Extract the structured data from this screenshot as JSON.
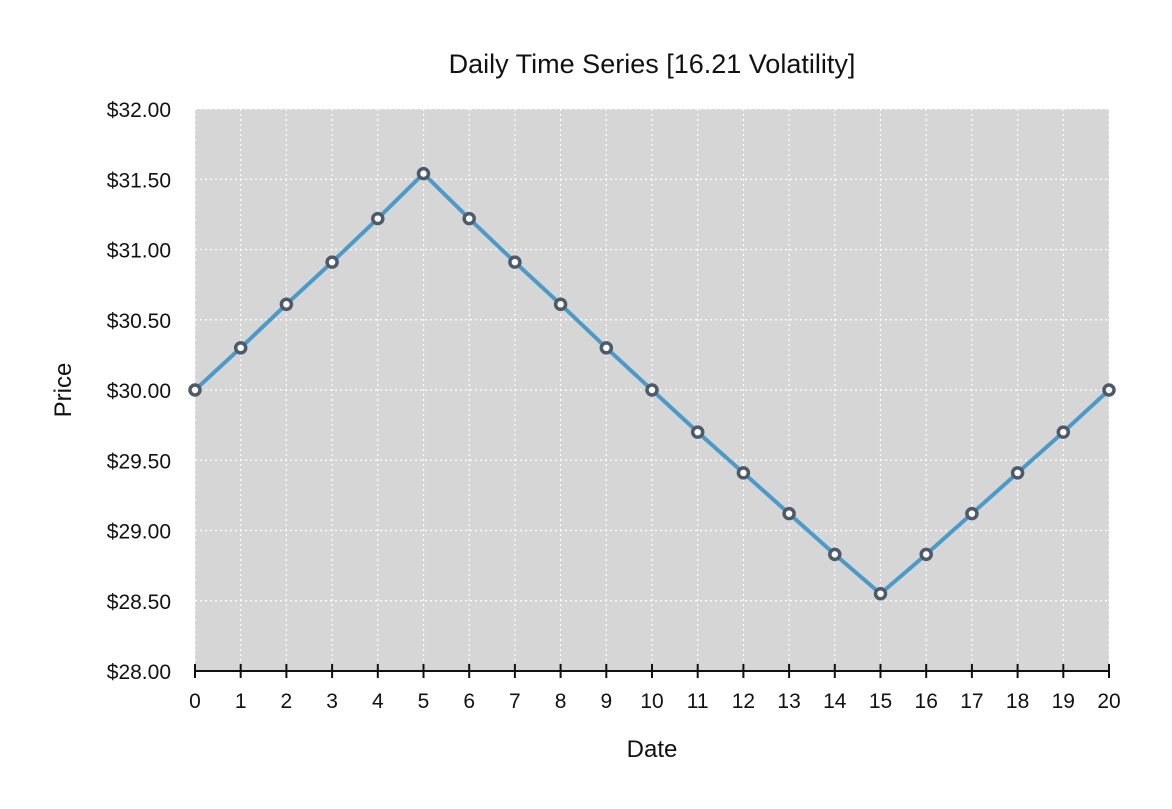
{
  "chart_data": {
    "type": "line",
    "title": "Daily Time Series [16.21 Volatility]",
    "xlabel": "Date",
    "ylabel": "Price",
    "xlim": [
      0,
      20
    ],
    "ylim": [
      28.0,
      32.0
    ],
    "x_ticks": [
      0,
      1,
      2,
      3,
      4,
      5,
      6,
      7,
      8,
      9,
      10,
      11,
      12,
      13,
      14,
      15,
      16,
      17,
      18,
      19,
      20
    ],
    "y_ticks": [
      28.0,
      28.5,
      29.0,
      29.5,
      30.0,
      30.5,
      31.0,
      31.5,
      32.0
    ],
    "x_tick_labels": [
      "0",
      "1",
      "2",
      "3",
      "4",
      "5",
      "6",
      "7",
      "8",
      "9",
      "10",
      "11",
      "12",
      "13",
      "14",
      "15",
      "16",
      "17",
      "18",
      "19",
      "20"
    ],
    "y_tick_labels": [
      "$28.00",
      "$28.50",
      "$29.00",
      "$29.50",
      "$30.00",
      "$30.50",
      "$31.00",
      "$31.50",
      "$32.00"
    ],
    "grid": true,
    "series": [
      {
        "color": "#4b9ac8",
        "marker_edge_color": "#4d5a6a",
        "x": [
          0,
          1,
          2,
          3,
          4,
          5,
          6,
          7,
          8,
          9,
          10,
          11,
          12,
          13,
          14,
          15,
          16,
          17,
          18,
          19,
          20
        ],
        "values": [
          30.0,
          30.3,
          30.61,
          30.91,
          31.22,
          31.54,
          31.22,
          30.91,
          30.61,
          30.3,
          30.0,
          29.7,
          29.41,
          29.12,
          28.83,
          28.55,
          28.83,
          29.12,
          29.41,
          29.7,
          30.0
        ]
      }
    ],
    "colors": {
      "plot_background": "#d6d6d6",
      "grid": "#ffffff",
      "axis": "#111111"
    }
  }
}
